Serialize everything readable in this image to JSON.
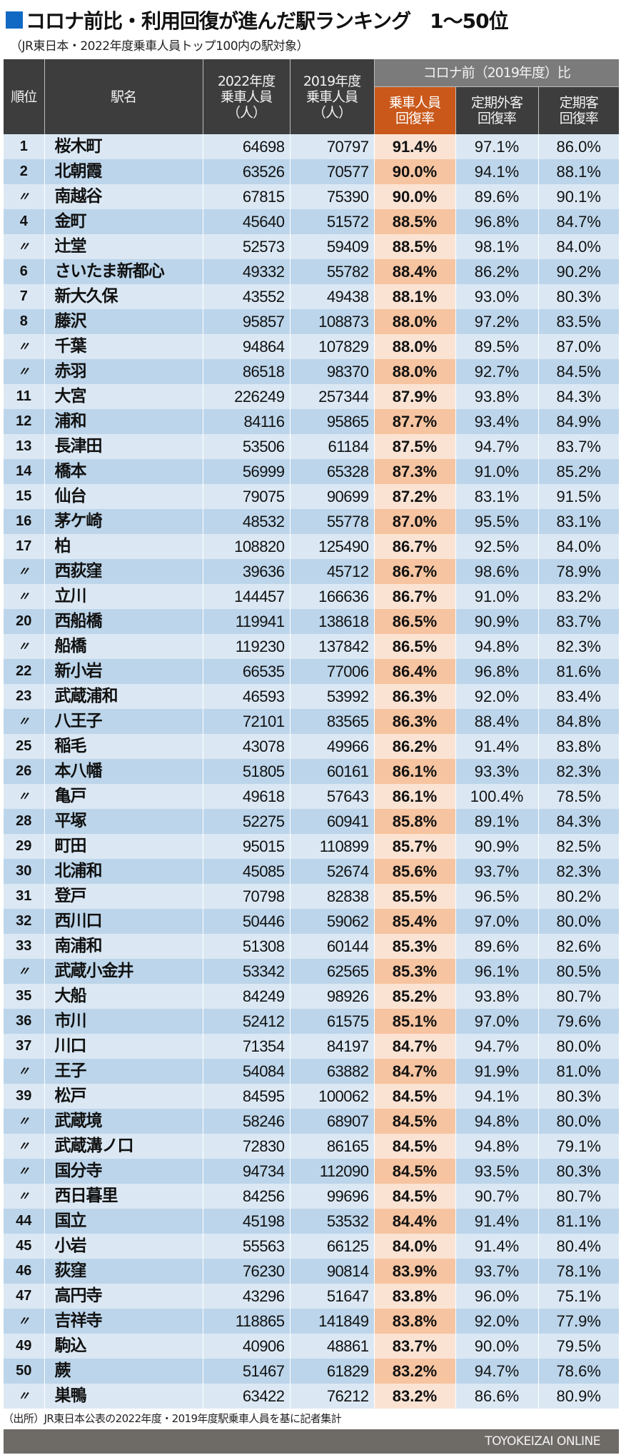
{
  "header": {
    "title": "コロナ前比・利用回復が進んだ駅ランキング　1～50位",
    "subtitle": "（JR東日本・2022年度乗車人員トップ100内の駅対象）"
  },
  "columns": {
    "rank": "順位",
    "station": "駅名",
    "riders_2022": "2022年度乗車人員（人）",
    "riders_2019": "2019年度乗車人員（人）",
    "group": "コロナ前（2019年度）比",
    "rate_total": "乗車人員回復率",
    "rate_noncommuter": "定期外客回復率",
    "rate_commuter": "定期客回復率"
  },
  "column_lines": {
    "riders_2022": [
      "2022年度",
      "乗車人員",
      "（人）"
    ],
    "riders_2019": [
      "2019年度",
      "乗車人員",
      "（人）"
    ],
    "rate_total": [
      "乗車人員",
      "回復率"
    ],
    "rate_noncommuter": [
      "定期外客",
      "回復率"
    ],
    "rate_commuter": [
      "定期客",
      "回復率"
    ]
  },
  "colors": {
    "title_square": "#1169c4",
    "header_bg": "#3d3d3d",
    "group_header_bg": "#7b7b7b",
    "highlight_header_bg": "#c9581a",
    "row_light": "#dbe8f4",
    "row_dark": "#bcd5ea",
    "highlight_light": "#fbe3d3",
    "highlight_dark": "#f6c4a0",
    "footer_bg": "#6e6b67"
  },
  "source": "（出所）JR東日本公表の2022年度・2019年度駅乗車人員を基に記者集計",
  "footer": {
    "brand": "TOYOKEIZAI ONLINE"
  },
  "chart_data": {
    "type": "table",
    "title": "コロナ前比・利用回復が進んだ駅ランキング　1～50位",
    "subtitle": "（JR東日本・2022年度乗車人員トップ100内の駅対象）",
    "headers": [
      "順位",
      "駅名",
      "2022年度乗車人員（人）",
      "2019年度乗車人員（人）",
      "乗車人員回復率",
      "定期外客回復率",
      "定期客回復率"
    ],
    "rows": [
      [
        "1",
        "桜木町",
        "64698",
        "70797",
        "91.4%",
        "97.1%",
        "86.0%"
      ],
      [
        "2",
        "北朝霞",
        "63526",
        "70577",
        "90.0%",
        "94.1%",
        "88.1%"
      ],
      [
        "〃",
        "南越谷",
        "67815",
        "75390",
        "90.0%",
        "89.6%",
        "90.1%"
      ],
      [
        "4",
        "金町",
        "45640",
        "51572",
        "88.5%",
        "96.8%",
        "84.7%"
      ],
      [
        "〃",
        "辻堂",
        "52573",
        "59409",
        "88.5%",
        "98.1%",
        "84.0%"
      ],
      [
        "6",
        "さいたま新都心",
        "49332",
        "55782",
        "88.4%",
        "86.2%",
        "90.2%"
      ],
      [
        "7",
        "新大久保",
        "43552",
        "49438",
        "88.1%",
        "93.0%",
        "80.3%"
      ],
      [
        "8",
        "藤沢",
        "95857",
        "108873",
        "88.0%",
        "97.2%",
        "83.5%"
      ],
      [
        "〃",
        "千葉",
        "94864",
        "107829",
        "88.0%",
        "89.5%",
        "87.0%"
      ],
      [
        "〃",
        "赤羽",
        "86518",
        "98370",
        "88.0%",
        "92.7%",
        "84.5%"
      ],
      [
        "11",
        "大宮",
        "226249",
        "257344",
        "87.9%",
        "93.8%",
        "84.3%"
      ],
      [
        "12",
        "浦和",
        "84116",
        "95865",
        "87.7%",
        "93.4%",
        "84.9%"
      ],
      [
        "13",
        "長津田",
        "53506",
        "61184",
        "87.5%",
        "94.7%",
        "83.7%"
      ],
      [
        "14",
        "橋本",
        "56999",
        "65328",
        "87.3%",
        "91.0%",
        "85.2%"
      ],
      [
        "15",
        "仙台",
        "79075",
        "90699",
        "87.2%",
        "83.1%",
        "91.5%"
      ],
      [
        "16",
        "茅ケ崎",
        "48532",
        "55778",
        "87.0%",
        "95.5%",
        "83.1%"
      ],
      [
        "17",
        "柏",
        "108820",
        "125490",
        "86.7%",
        "92.5%",
        "84.0%"
      ],
      [
        "〃",
        "西荻窪",
        "39636",
        "45712",
        "86.7%",
        "98.6%",
        "78.9%"
      ],
      [
        "〃",
        "立川",
        "144457",
        "166636",
        "86.7%",
        "91.0%",
        "83.2%"
      ],
      [
        "20",
        "西船橋",
        "119941",
        "138618",
        "86.5%",
        "90.9%",
        "83.7%"
      ],
      [
        "〃",
        "船橋",
        "119230",
        "137842",
        "86.5%",
        "94.8%",
        "82.3%"
      ],
      [
        "22",
        "新小岩",
        "66535",
        "77006",
        "86.4%",
        "96.8%",
        "81.6%"
      ],
      [
        "23",
        "武蔵浦和",
        "46593",
        "53992",
        "86.3%",
        "92.0%",
        "83.4%"
      ],
      [
        "〃",
        "八王子",
        "72101",
        "83565",
        "86.3%",
        "88.4%",
        "84.8%"
      ],
      [
        "25",
        "稲毛",
        "43078",
        "49966",
        "86.2%",
        "91.4%",
        "83.8%"
      ],
      [
        "26",
        "本八幡",
        "51805",
        "60161",
        "86.1%",
        "93.3%",
        "82.3%"
      ],
      [
        "〃",
        "亀戸",
        "49618",
        "57643",
        "86.1%",
        "100.4%",
        "78.5%"
      ],
      [
        "28",
        "平塚",
        "52275",
        "60941",
        "85.8%",
        "89.1%",
        "84.3%"
      ],
      [
        "29",
        "町田",
        "95015",
        "110899",
        "85.7%",
        "90.9%",
        "82.5%"
      ],
      [
        "30",
        "北浦和",
        "45085",
        "52674",
        "85.6%",
        "93.7%",
        "82.3%"
      ],
      [
        "31",
        "登戸",
        "70798",
        "82838",
        "85.5%",
        "96.5%",
        "80.2%"
      ],
      [
        "32",
        "西川口",
        "50446",
        "59062",
        "85.4%",
        "97.0%",
        "80.0%"
      ],
      [
        "33",
        "南浦和",
        "51308",
        "60144",
        "85.3%",
        "89.6%",
        "82.6%"
      ],
      [
        "〃",
        "武蔵小金井",
        "53342",
        "62565",
        "85.3%",
        "96.1%",
        "80.5%"
      ],
      [
        "35",
        "大船",
        "84249",
        "98926",
        "85.2%",
        "93.8%",
        "80.7%"
      ],
      [
        "36",
        "市川",
        "52412",
        "61575",
        "85.1%",
        "97.0%",
        "79.6%"
      ],
      [
        "37",
        "川口",
        "71354",
        "84197",
        "84.7%",
        "94.7%",
        "80.0%"
      ],
      [
        "〃",
        "王子",
        "54084",
        "63882",
        "84.7%",
        "91.9%",
        "81.0%"
      ],
      [
        "39",
        "松戸",
        "84595",
        "100062",
        "84.5%",
        "94.1%",
        "80.3%"
      ],
      [
        "〃",
        "武蔵境",
        "58246",
        "68907",
        "84.5%",
        "94.8%",
        "80.0%"
      ],
      [
        "〃",
        "武蔵溝ノ口",
        "72830",
        "86165",
        "84.5%",
        "94.8%",
        "79.1%"
      ],
      [
        "〃",
        "国分寺",
        "94734",
        "112090",
        "84.5%",
        "93.5%",
        "80.3%"
      ],
      [
        "〃",
        "西日暮里",
        "84256",
        "99696",
        "84.5%",
        "90.7%",
        "80.7%"
      ],
      [
        "44",
        "国立",
        "45198",
        "53532",
        "84.4%",
        "91.4%",
        "81.1%"
      ],
      [
        "45",
        "小岩",
        "55563",
        "66125",
        "84.0%",
        "91.4%",
        "80.4%"
      ],
      [
        "46",
        "荻窪",
        "76230",
        "90814",
        "83.9%",
        "93.7%",
        "78.1%"
      ],
      [
        "47",
        "高円寺",
        "43296",
        "51647",
        "83.8%",
        "96.0%",
        "75.1%"
      ],
      [
        "〃",
        "吉祥寺",
        "118865",
        "141849",
        "83.8%",
        "92.0%",
        "77.9%"
      ],
      [
        "49",
        "駒込",
        "40906",
        "48861",
        "83.7%",
        "90.0%",
        "79.5%"
      ],
      [
        "50",
        "蕨",
        "51467",
        "61829",
        "83.2%",
        "94.7%",
        "78.6%"
      ],
      [
        "〃",
        "巣鴨",
        "63422",
        "76212",
        "83.2%",
        "86.6%",
        "80.9%"
      ]
    ],
    "highlight_column": "乗車人員回復率",
    "grid": true
  }
}
